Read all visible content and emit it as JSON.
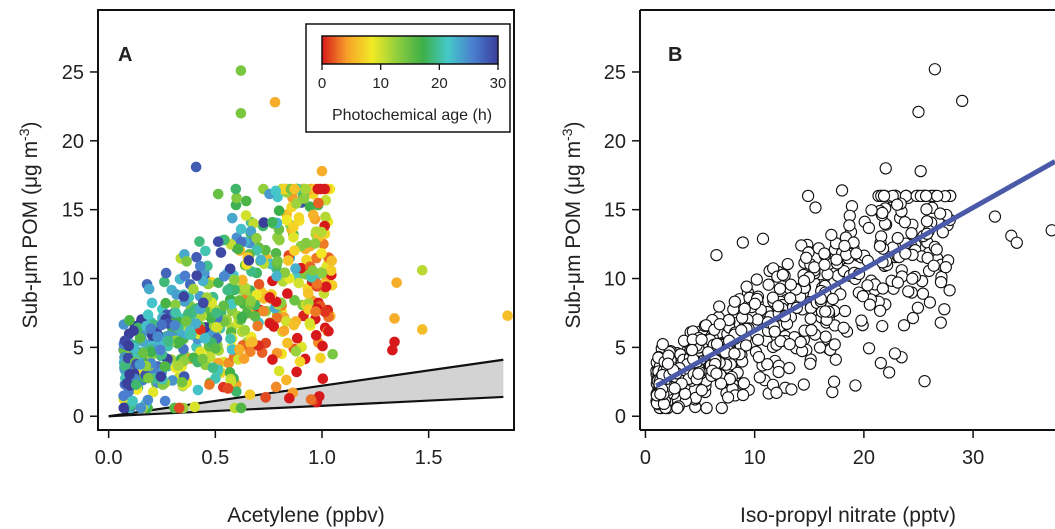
{
  "chart_data": [
    {
      "panel_label": "A",
      "type": "scatter",
      "xlabel": "Acetylene (ppbv)",
      "ylabel_main": "Sub-",
      "ylabel_mu": "μ",
      "ylabel_rest": "m POM (",
      "ylabel_unit": "μg m",
      "ylabel_sup": "-3",
      "ylabel_close": ")",
      "xlim": [
        -0.05,
        1.9
      ],
      "ylim": [
        -1,
        29.5
      ],
      "xticks": [
        0.0,
        0.5,
        1.0,
        1.5
      ],
      "xtick_labels": [
        "0.0",
        "0.5",
        "1.0",
        "1.5"
      ],
      "yticks": [
        0,
        5,
        10,
        15,
        20,
        25
      ],
      "ytick_labels": [
        "0",
        "5",
        "10",
        "15",
        "20",
        "25"
      ],
      "colorbar": {
        "title": "Photochemical age (h)",
        "min": 0,
        "max": 30,
        "ticks": [
          0,
          10,
          20,
          30
        ],
        "tick_labels": [
          "0",
          "10",
          "20",
          "30"
        ],
        "colors": [
          "#d7191c",
          "#f7a12a",
          "#f2ea24",
          "#8fce3e",
          "#3daf48",
          "#45c9c9",
          "#4a7fcf",
          "#3a3d9a"
        ]
      },
      "shaded_band": {
        "x": [
          0.0,
          1.85
        ],
        "lower": [
          0.0,
          1.4
        ],
        "upper": [
          0.0,
          4.1
        ],
        "fill": "#d3d3d3"
      },
      "labeled_points": [
        {
          "x": 0.62,
          "y": 25.1,
          "age": 14
        },
        {
          "x": 0.62,
          "y": 22.0,
          "age": 14
        },
        {
          "x": 0.78,
          "y": 22.8,
          "age": 5
        },
        {
          "x": 0.41,
          "y": 18.1,
          "age": 28
        },
        {
          "x": 1.0,
          "y": 17.8,
          "age": 5
        },
        {
          "x": 1.0,
          "y": 10.4,
          "age": 13
        },
        {
          "x": 1.35,
          "y": 9.7,
          "age": 5
        },
        {
          "x": 1.47,
          "y": 10.6,
          "age": 11
        },
        {
          "x": 1.34,
          "y": 7.1,
          "age": 5
        },
        {
          "x": 1.47,
          "y": 6.3,
          "age": 6
        },
        {
          "x": 1.87,
          "y": 7.3,
          "age": 6
        },
        {
          "x": 1.34,
          "y": 5.4,
          "age": 0
        },
        {
          "x": 1.33,
          "y": 4.8,
          "age": 0
        },
        {
          "x": 1.05,
          "y": 4.5,
          "age": 14
        },
        {
          "x": 0.97,
          "y": 7.6,
          "age": 3
        }
      ],
      "cloud": {
        "n": 620,
        "x_min": 0.07,
        "x_max": 1.05,
        "note": "dense cloud; POM increases with acetylene at low values"
      }
    },
    {
      "panel_label": "B",
      "type": "scatter",
      "xlabel": "Iso-propyl nitrate (pptv)",
      "ylabel_main": "Sub-",
      "ylabel_mu": "μ",
      "ylabel_rest": "m POM (",
      "ylabel_unit": "μg m",
      "ylabel_sup": "-3",
      "ylabel_close": ")",
      "xlim": [
        -0.5,
        37.5
      ],
      "ylim": [
        -1,
        29.5
      ],
      "xticks": [
        0,
        10,
        20,
        30
      ],
      "xtick_labels": [
        "0",
        "10",
        "20",
        "30"
      ],
      "yticks": [
        0,
        5,
        10,
        15,
        20,
        25
      ],
      "ytick_labels": [
        "0",
        "5",
        "10",
        "15",
        "20",
        "25"
      ],
      "fit_line": {
        "x": [
          1.0,
          37.5
        ],
        "y": [
          2.2,
          18.5
        ],
        "color": "#4a5aa8"
      },
      "labeled_points": [
        {
          "x": 26.5,
          "y": 25.2
        },
        {
          "x": 25.0,
          "y": 22.1
        },
        {
          "x": 29.0,
          "y": 22.9
        },
        {
          "x": 22.0,
          "y": 18.0
        },
        {
          "x": 25.2,
          "y": 17.8
        },
        {
          "x": 18.0,
          "y": 16.4
        },
        {
          "x": 6.5,
          "y": 11.7
        },
        {
          "x": 32.0,
          "y": 14.5
        },
        {
          "x": 33.5,
          "y": 13.1
        },
        {
          "x": 34.0,
          "y": 12.6
        },
        {
          "x": 37.2,
          "y": 13.5
        },
        {
          "x": 12.0,
          "y": 1.7
        },
        {
          "x": 14.5,
          "y": 2.3
        }
      ],
      "cloud": {
        "n": 620,
        "x_min": 1.0,
        "x_max": 28.0,
        "note": "open circles scattered about the fit line"
      }
    }
  ]
}
